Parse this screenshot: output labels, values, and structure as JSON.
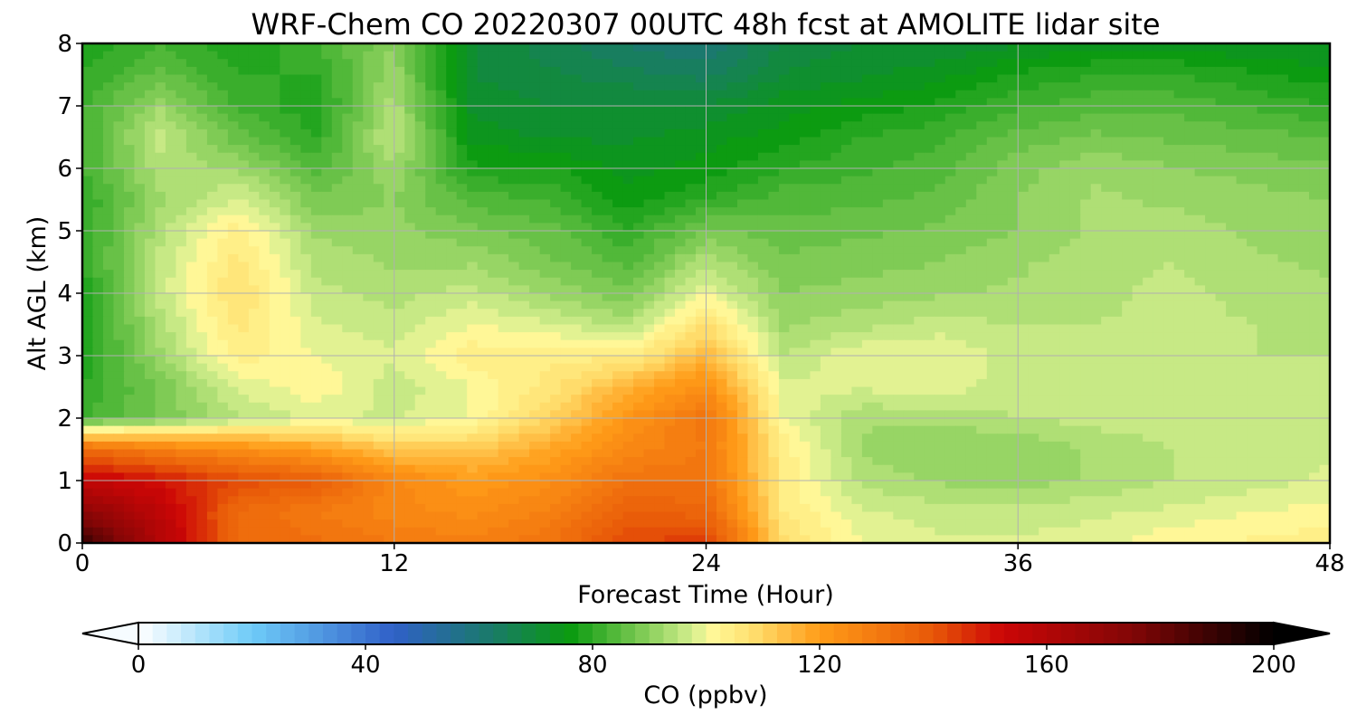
{
  "chart_data": {
    "type": "heatmap",
    "title": "WRF-Chem CO  20220307 00UTC 48h fcst at AMOLITE lidar site",
    "xlabel": "Forecast Time (Hour)",
    "ylabel": "Alt AGL (km)",
    "xlim": [
      0,
      48
    ],
    "ylim": [
      0,
      8
    ],
    "x_ticks": [
      "0",
      "12",
      "24",
      "36",
      "48"
    ],
    "y_ticks": [
      "0",
      "1",
      "2",
      "3",
      "4",
      "5",
      "6",
      "7",
      "8"
    ],
    "grid": true,
    "x_hours": [
      0,
      3,
      6,
      9,
      12,
      15,
      18,
      21,
      24,
      27,
      30,
      33,
      36,
      39,
      42,
      45,
      48
    ],
    "y_km": [
      0,
      0.5,
      1,
      1.5,
      2,
      2.5,
      3,
      3.5,
      4,
      4.5,
      5,
      5.5,
      6,
      6.5,
      7,
      7.5,
      8
    ],
    "co_ppbv": [
      [
        190,
        160,
        135,
        133,
        130,
        128,
        132,
        142,
        145,
        108,
        100,
        98,
        98,
        99,
        102,
        103,
        104
      ],
      [
        172,
        157,
        135,
        130,
        126,
        124,
        128,
        138,
        136,
        105,
        98,
        96,
        96,
        97,
        98,
        100,
        101
      ],
      [
        155,
        150,
        142,
        138,
        126,
        120,
        124,
        132,
        132,
        104,
        94,
        92,
        91,
        93,
        95,
        96,
        98
      ],
      [
        135,
        128,
        124,
        120,
        112,
        112,
        118,
        126,
        130,
        104,
        92,
        90,
        90,
        93,
        95,
        96,
        97
      ],
      [
        82,
        88,
        95,
        98,
        97,
        100,
        110,
        122,
        132,
        100,
        93,
        93,
        95,
        96,
        97,
        97,
        97
      ],
      [
        80,
        88,
        98,
        102,
        96,
        100,
        106,
        116,
        124,
        98,
        98,
        99,
        96,
        96,
        96,
        96,
        96
      ],
      [
        78,
        92,
        104,
        100,
        98,
        104,
        104,
        104,
        115,
        95,
        100,
        100,
        96,
        96,
        96,
        95,
        95
      ],
      [
        78,
        94,
        106,
        98,
        96,
        100,
        98,
        94,
        108,
        92,
        94,
        96,
        95,
        95,
        96,
        95,
        94
      ],
      [
        78,
        96,
        108,
        96,
        94,
        96,
        92,
        88,
        100,
        90,
        91,
        92,
        93,
        94,
        96,
        94,
        93
      ],
      [
        80,
        96,
        106,
        94,
        92,
        92,
        88,
        84,
        94,
        88,
        89,
        90,
        92,
        94,
        95,
        93,
        92
      ],
      [
        80,
        94,
        104,
        92,
        91,
        88,
        86,
        80,
        88,
        86,
        87,
        88,
        90,
        93,
        94,
        92,
        91
      ],
      [
        80,
        92,
        98,
        88,
        90,
        84,
        82,
        76,
        80,
        84,
        84,
        86,
        90,
        93,
        92,
        91,
        90
      ],
      [
        82,
        94,
        92,
        84,
        92,
        78,
        78,
        74,
        76,
        80,
        82,
        84,
        89,
        92,
        90,
        89,
        88
      ],
      [
        82,
        96,
        86,
        80,
        96,
        74,
        72,
        72,
        74,
        76,
        80,
        82,
        86,
        88,
        87,
        86,
        85
      ],
      [
        82,
        92,
        82,
        78,
        94,
        72,
        70,
        70,
        70,
        74,
        76,
        78,
        82,
        84,
        84,
        82,
        80
      ],
      [
        80,
        86,
        80,
        80,
        92,
        70,
        68,
        66,
        64,
        70,
        72,
        74,
        78,
        80,
        80,
        78,
        76
      ],
      [
        78,
        82,
        78,
        82,
        90,
        70,
        66,
        62,
        60,
        68,
        70,
        70,
        72,
        74,
        74,
        72,
        72
      ]
    ],
    "colorbar": {
      "label": "CO  (ppbv)",
      "ticks": [
        "0",
        "40",
        "80",
        "120",
        "160",
        "200"
      ],
      "min": 0,
      "max": 200,
      "extend": "both",
      "levels": 80,
      "color_stops": [
        {
          "v": 0,
          "c": "#ffffff"
        },
        {
          "v": 20,
          "c": "#6ecbf8"
        },
        {
          "v": 45,
          "c": "#3060c8"
        },
        {
          "v": 62,
          "c": "#1a7a6a"
        },
        {
          "v": 76,
          "c": "#0a9a10"
        },
        {
          "v": 88,
          "c": "#78c850"
        },
        {
          "v": 98,
          "c": "#d8f090"
        },
        {
          "v": 101,
          "c": "#fff898"
        },
        {
          "v": 108,
          "c": "#ffe070"
        },
        {
          "v": 120,
          "c": "#ff9c18"
        },
        {
          "v": 140,
          "c": "#e85808"
        },
        {
          "v": 152,
          "c": "#cc0606"
        },
        {
          "v": 175,
          "c": "#820606"
        },
        {
          "v": 200,
          "c": "#000000"
        }
      ]
    }
  }
}
